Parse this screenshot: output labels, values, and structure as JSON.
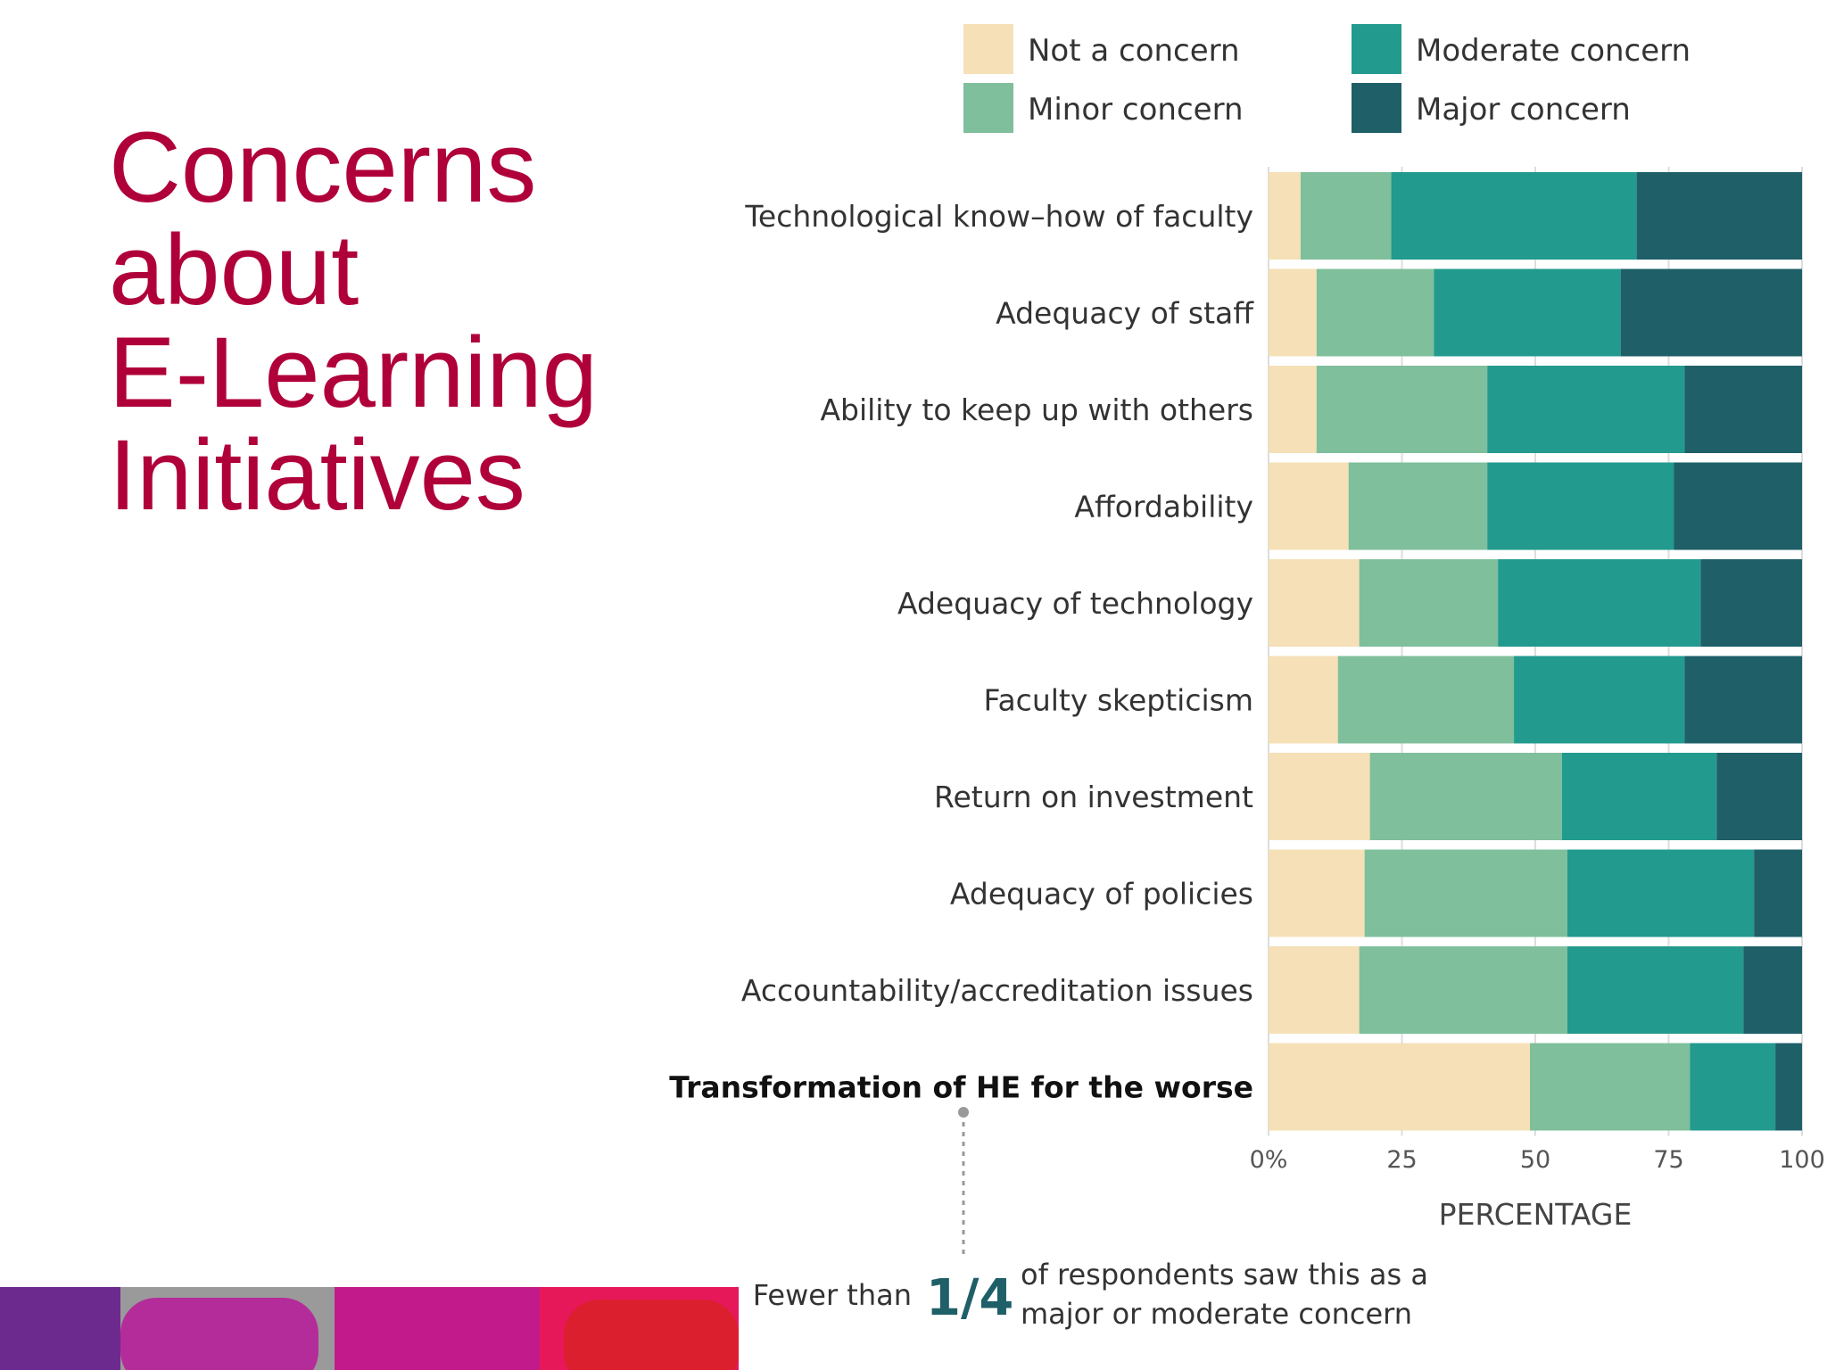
{
  "slide": {
    "title_lines": [
      "Concerns",
      "about",
      "E-Learning",
      "Initiatives"
    ]
  },
  "colors": {
    "title": "#b0003a",
    "not_a_concern": "#f5e0b7",
    "minor_concern": "#7fbf9c",
    "moderate_concern": "#229a8e",
    "major_concern": "#1e5f68"
  },
  "chart_data": {
    "type": "bar",
    "orientation": "horizontal",
    "stacked": true,
    "title": "",
    "xlabel": "PERCENTAGE",
    "ylabel": "",
    "xlim": [
      0,
      100
    ],
    "x_ticks": [
      "0%",
      "25",
      "50",
      "75",
      "100"
    ],
    "x_tick_values": [
      0,
      25,
      50,
      75,
      100
    ],
    "legend_position": "top",
    "categories": [
      "Technological know–how of faculty",
      "Adequacy of staff",
      "Ability to keep up with others",
      "Affordability",
      "Adequacy of technology",
      "Faculty skepticism",
      "Return on investment",
      "Adequacy of policies",
      "Accountability/accreditation issues",
      "Transformation of HE for the worse"
    ],
    "highlighted_category": "Transformation of HE for the worse",
    "series": [
      {
        "name": "Not a concern",
        "color": "#f5e0b7",
        "values": [
          6,
          9,
          9,
          15,
          17,
          13,
          19,
          18,
          17,
          49
        ]
      },
      {
        "name": "Minor concern",
        "color": "#7fbf9c",
        "values": [
          17,
          22,
          32,
          26,
          26,
          33,
          36,
          38,
          39,
          30
        ]
      },
      {
        "name": "Moderate concern",
        "color": "#229a8e",
        "values": [
          46,
          35,
          37,
          35,
          38,
          32,
          29,
          35,
          33,
          16
        ]
      },
      {
        "name": "Major concern",
        "color": "#1e5f68",
        "values": [
          31,
          34,
          22,
          24,
          19,
          22,
          16,
          9,
          11,
          5
        ]
      }
    ],
    "legend_order": [
      "Not a concern",
      "Moderate concern",
      "Minor concern",
      "Major concern"
    ],
    "annotation": {
      "prefix": "Fewer than",
      "emphasis": "1/4",
      "line1": "of respondents saw this as a",
      "line2": "major or moderate concern"
    }
  }
}
